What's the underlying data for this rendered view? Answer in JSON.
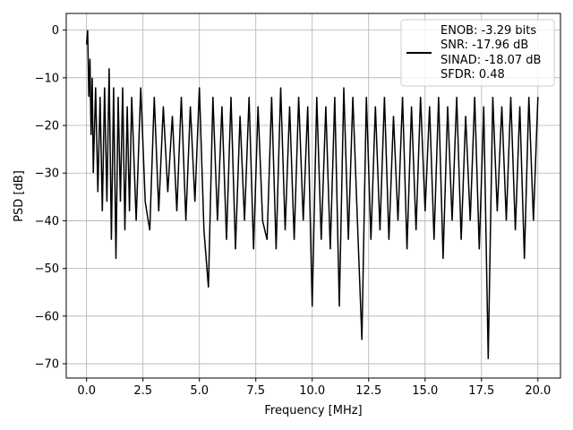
{
  "chart_data": {
    "type": "line",
    "title": "",
    "xlabel": "Frequency [MHz]",
    "ylabel": "PSD [dB]",
    "xlim": [
      -0.9,
      21.0
    ],
    "ylim": [
      -73,
      3.5
    ],
    "x_ticks": [
      0.0,
      2.5,
      5.0,
      7.5,
      10.0,
      12.5,
      15.0,
      17.5,
      20.0
    ],
    "x_tick_labels": [
      "0.0",
      "2.5",
      "5.0",
      "7.5",
      "10.0",
      "12.5",
      "15.0",
      "17.5",
      "20.0"
    ],
    "y_ticks": [
      0,
      -10,
      -20,
      -30,
      -40,
      -50,
      -60,
      -70
    ],
    "y_tick_labels": [
      "0",
      "−10",
      "−20",
      "−30",
      "−40",
      "−50",
      "−60",
      "−70"
    ],
    "grid": true,
    "legend_position": "top-right",
    "line_color": "#000000",
    "series": [
      {
        "x": [
          0.0,
          0.05,
          0.1,
          0.15,
          0.2,
          0.25,
          0.3,
          0.4,
          0.5,
          0.6,
          0.7,
          0.8,
          0.9,
          1.0,
          1.1,
          1.2,
          1.3,
          1.4,
          1.5,
          1.6,
          1.7,
          1.8,
          1.9,
          2.0,
          2.2,
          2.4,
          2.6,
          2.8,
          3.0,
          3.2,
          3.4,
          3.6,
          3.8,
          4.0,
          4.2,
          4.4,
          4.6,
          4.8,
          5.0,
          5.2,
          5.4,
          5.6,
          5.8,
          6.0,
          6.2,
          6.4,
          6.6,
          6.8,
          7.0,
          7.2,
          7.4,
          7.6,
          7.8,
          8.0,
          8.2,
          8.4,
          8.6,
          8.8,
          9.0,
          9.2,
          9.4,
          9.6,
          9.8,
          10.0,
          10.2,
          10.4,
          10.6,
          10.8,
          11.0,
          11.2,
          11.4,
          11.6,
          11.8,
          12.0,
          12.2,
          12.4,
          12.6,
          12.8,
          13.0,
          13.2,
          13.4,
          13.6,
          13.8,
          14.0,
          14.2,
          14.4,
          14.6,
          14.8,
          15.0,
          15.2,
          15.4,
          15.6,
          15.8,
          16.0,
          16.2,
          16.4,
          16.6,
          16.8,
          17.0,
          17.2,
          17.4,
          17.6,
          17.8,
          18.0,
          18.2,
          18.4,
          18.6,
          18.8,
          19.0,
          19.2,
          19.4,
          19.6,
          19.8,
          20.0
        ],
        "y": [
          -3,
          0,
          -14,
          -6,
          -22,
          -10,
          -30,
          -12,
          -34,
          -14,
          -38,
          -12,
          -36,
          -8,
          -44,
          -12,
          -48,
          -14,
          -36,
          -12,
          -42,
          -16,
          -38,
          -14,
          -40,
          -12,
          -36,
          -42,
          -14,
          -38,
          -16,
          -34,
          -18,
          -38,
          -14,
          -40,
          -16,
          -36,
          -12,
          -42,
          -54,
          -14,
          -40,
          -16,
          -44,
          -14,
          -46,
          -18,
          -40,
          -14,
          -46,
          -16,
          -40,
          -44,
          -14,
          -46,
          -12,
          -42,
          -16,
          -44,
          -14,
          -40,
          -16,
          -58,
          -14,
          -44,
          -16,
          -46,
          -14,
          -58,
          -12,
          -44,
          -14,
          -40,
          -65,
          -14,
          -44,
          -16,
          -42,
          -14,
          -44,
          -18,
          -40,
          -14,
          -46,
          -16,
          -42,
          -14,
          -38,
          -16,
          -44,
          -14,
          -48,
          -16,
          -40,
          -14,
          -44,
          -18,
          -40,
          -14,
          -46,
          -16,
          -69,
          -14,
          -38,
          -16,
          -40,
          -14,
          -42,
          -16,
          -48,
          -14,
          -40,
          -14
        ]
      }
    ],
    "legend_entries": [
      "ENOB: -3.29 bits",
      "SNR: -17.96 dB",
      "SINAD: -18.07 dB",
      "SFDR: 0.48"
    ]
  }
}
